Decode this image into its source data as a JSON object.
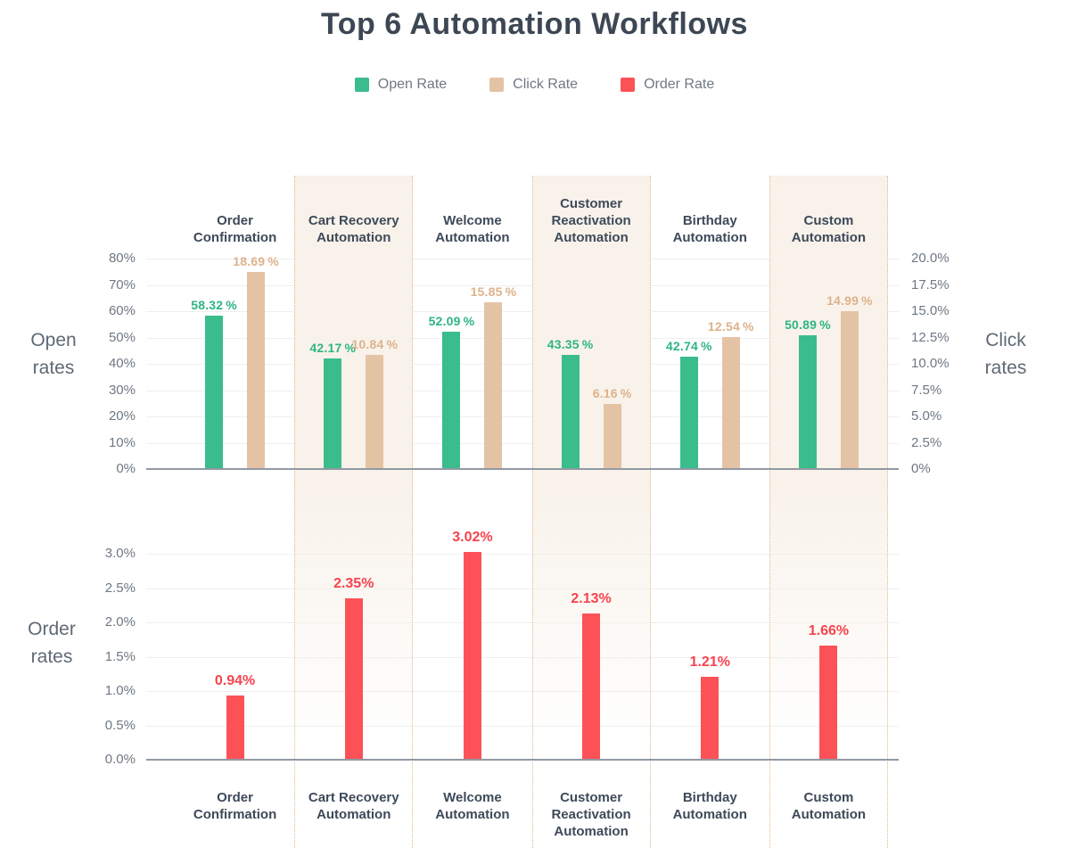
{
  "chart_data": {
    "type": "bar",
    "title": "Top 6 Automation Workflows",
    "categories": [
      "Order Confirmation",
      "Cart Recovery Automation",
      "Welcome Automation",
      "Customer Reactivation Automation",
      "Birthday Automation",
      "Custom Automation"
    ],
    "series": [
      {
        "name": "Open Rate",
        "panel": "top",
        "axis": "left",
        "unit": "%",
        "values": [
          58.32,
          42.17,
          52.09,
          43.35,
          42.74,
          50.89
        ],
        "labels": [
          "58.32 %",
          "42.17 %",
          "52.09 %",
          "43.35 %",
          "42.74 %",
          "50.89 %"
        ],
        "color": "#3bbc8d",
        "label_color": "#2eb583"
      },
      {
        "name": "Click Rate",
        "panel": "top",
        "axis": "right",
        "unit": "%",
        "values": [
          18.69,
          10.84,
          15.85,
          6.16,
          12.54,
          14.99
        ],
        "labels": [
          "18.69 %",
          "10.84 %",
          "15.85 %",
          "6.16 %",
          "12.54 %",
          "14.99 %"
        ],
        "color": "#e4c3a5",
        "label_color": "#ddb28b"
      },
      {
        "name": "Order Rate",
        "panel": "bottom",
        "axis": "left",
        "unit": "%",
        "values": [
          0.94,
          2.35,
          3.02,
          2.13,
          1.21,
          1.66
        ],
        "labels": [
          "0.94%",
          "2.35%",
          "3.02%",
          "2.13%",
          "1.21%",
          "1.66%"
        ],
        "color": "#fc5257",
        "label_color": "#f8434e"
      }
    ],
    "panels": {
      "top": {
        "left_axis": {
          "title": "Open rates",
          "ticks": [
            "80%",
            "70%",
            "60%",
            "50%",
            "40%",
            "30%",
            "20%",
            "10%",
            "0%"
          ],
          "lim": [
            0,
            80
          ]
        },
        "right_axis": {
          "title": "Click rates",
          "ticks": [
            "20.0%",
            "17.5%",
            "15.0%",
            "12.5%",
            "10.0%",
            "7.5%",
            "5.0%",
            "2.5%",
            "0%"
          ],
          "lim": [
            0,
            20
          ]
        }
      },
      "bottom": {
        "left_axis": {
          "title": "Order rates",
          "ticks": [
            "3.0%",
            "2.5%",
            "2.0%",
            "1.5%",
            "1.0%",
            "0.5%",
            "0.0%"
          ],
          "lim": [
            0,
            3
          ]
        }
      }
    },
    "grid": "on",
    "legend_position": "top",
    "highlighted_columns": [
      1,
      3,
      5
    ],
    "highlight_color": "#f8f2ea"
  }
}
